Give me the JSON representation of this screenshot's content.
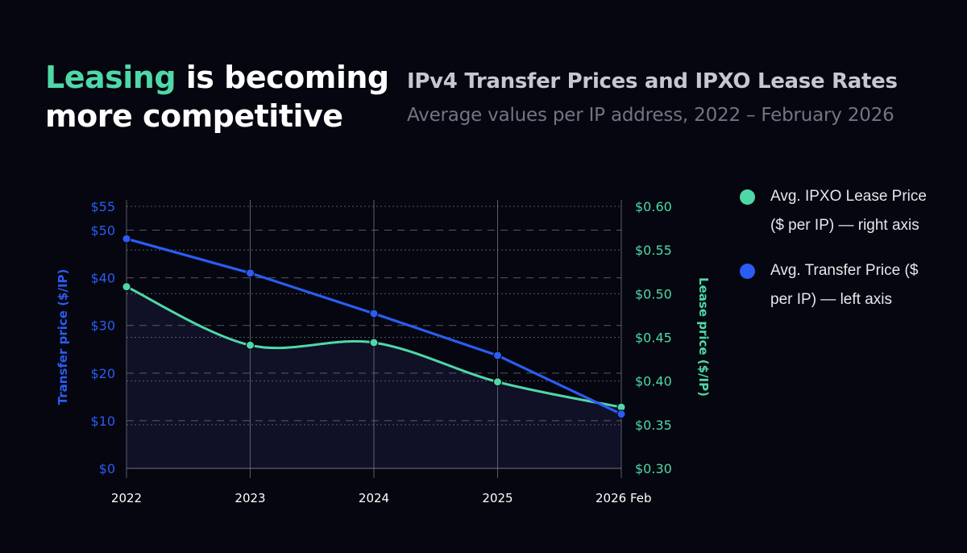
{
  "headline": {
    "accent": "Leasing",
    "rest": " is becoming more competitive"
  },
  "colors": {
    "background": "#05060f",
    "transfer": "#2b5cf3",
    "lease": "#4fd8a7",
    "grid": "#6f7384"
  },
  "legend": [
    {
      "label": "Avg. IPXO Lease Price ($ per IP) — right axis",
      "color": "#4fd8a7"
    },
    {
      "label": "Avg. Transfer Price ($ per IP) — left axis",
      "color": "#2b5cf3"
    }
  ],
  "chart_data": {
    "type": "line",
    "title": "IPv4 Transfer Prices and IPXO Lease Rates",
    "subtitle": "Average values per IP address, 2022 – February 2026",
    "categories": [
      "2022",
      "2023",
      "2024",
      "2025",
      "2026 Feb"
    ],
    "x": [
      0,
      1,
      2,
      3,
      4
    ],
    "series": [
      {
        "name": "Avg. Transfer Price ($ per IP)",
        "axis": "left",
        "color": "#2b5cf3",
        "values": [
          48.2,
          41.0,
          32.5,
          23.7,
          11.4
        ]
      },
      {
        "name": "Avg. IPXO Lease Price ($ per IP)",
        "axis": "right",
        "color": "#4fd8a7",
        "values": [
          0.508,
          0.441,
          0.444,
          0.399,
          0.37
        ]
      }
    ],
    "y_left": {
      "label": "Transfer price ($/IP)",
      "lim": [
        0,
        55
      ],
      "ticks": [
        0,
        10,
        20,
        30,
        40,
        50,
        55
      ],
      "tick_labels": [
        "$0",
        "$10",
        "$20",
        "$30",
        "$40",
        "$50",
        "$55"
      ]
    },
    "y_right": {
      "label": "Lease price ($/IP)",
      "lim": [
        0.3,
        0.6
      ],
      "ticks": [
        0.3,
        0.35,
        0.4,
        0.45,
        0.5,
        0.55,
        0.6
      ],
      "tick_labels": [
        "$0.30",
        "$0.35",
        "$0.40",
        "$0.45",
        "$0.50",
        "$0.55",
        "$0.60"
      ]
    }
  }
}
